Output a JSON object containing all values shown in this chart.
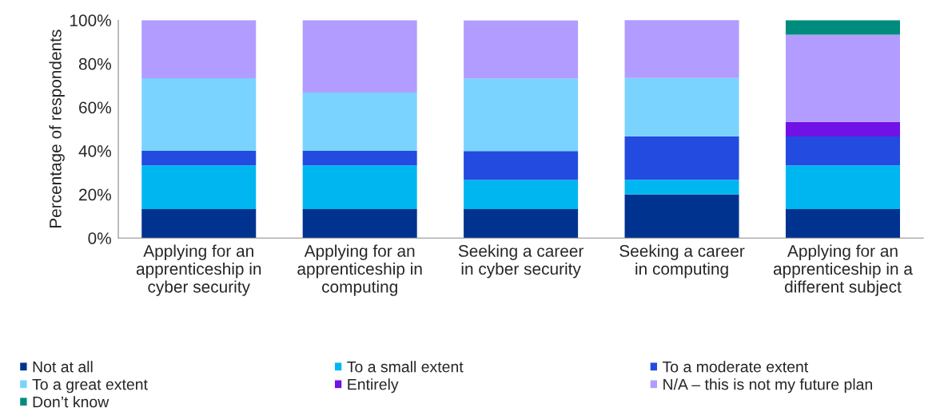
{
  "chart_data": {
    "type": "bar",
    "stacked": true,
    "ylabel": "Percentage of respondents",
    "categories": [
      "Applying for an\napprenticeship in\ncyber security",
      "Applying for an\napprenticeship in\ncomputing",
      "Seeking a career\nin cyber security",
      "Seeking a career\nin computing",
      "Applying for an\napprenticeship in a\ndifferent subject"
    ],
    "series": [
      {
        "name": "Not at all",
        "color": "#00338f",
        "values": [
          13.3,
          13.3,
          13.3,
          20,
          13.3
        ]
      },
      {
        "name": "To a small extent",
        "color": "#00b6f0",
        "values": [
          20,
          20,
          13.3,
          6.7,
          20
        ]
      },
      {
        "name": "To a moderate extent",
        "color": "#234be0",
        "values": [
          6.7,
          6.7,
          13.3,
          20,
          13.3
        ]
      },
      {
        "name": "To a great extent",
        "color": "#7ad3ff",
        "values": [
          33.3,
          26.7,
          33.3,
          26.7,
          null
        ]
      },
      {
        "name": "Entirely",
        "color": "#7012e6",
        "values": [
          null,
          null,
          null,
          null,
          6.7
        ]
      },
      {
        "name": "N/A – this is not my future plan",
        "color": "#b29cff",
        "values": [
          26.7,
          33.3,
          26.7,
          26.7,
          40
        ]
      },
      {
        "name": "Don’t know",
        "color": "#008c7c",
        "values": [
          null,
          null,
          null,
          null,
          6.7
        ]
      }
    ],
    "ylim": [
      0,
      100
    ],
    "yticks": [
      {
        "value": 0,
        "label": "0%"
      },
      {
        "value": 20,
        "label": "20%"
      },
      {
        "value": 40,
        "label": "40%"
      },
      {
        "value": 60,
        "label": "60%"
      },
      {
        "value": 80,
        "label": "80%"
      },
      {
        "value": 100,
        "label": "100%"
      }
    ],
    "grid": false,
    "legend": "bottom"
  }
}
